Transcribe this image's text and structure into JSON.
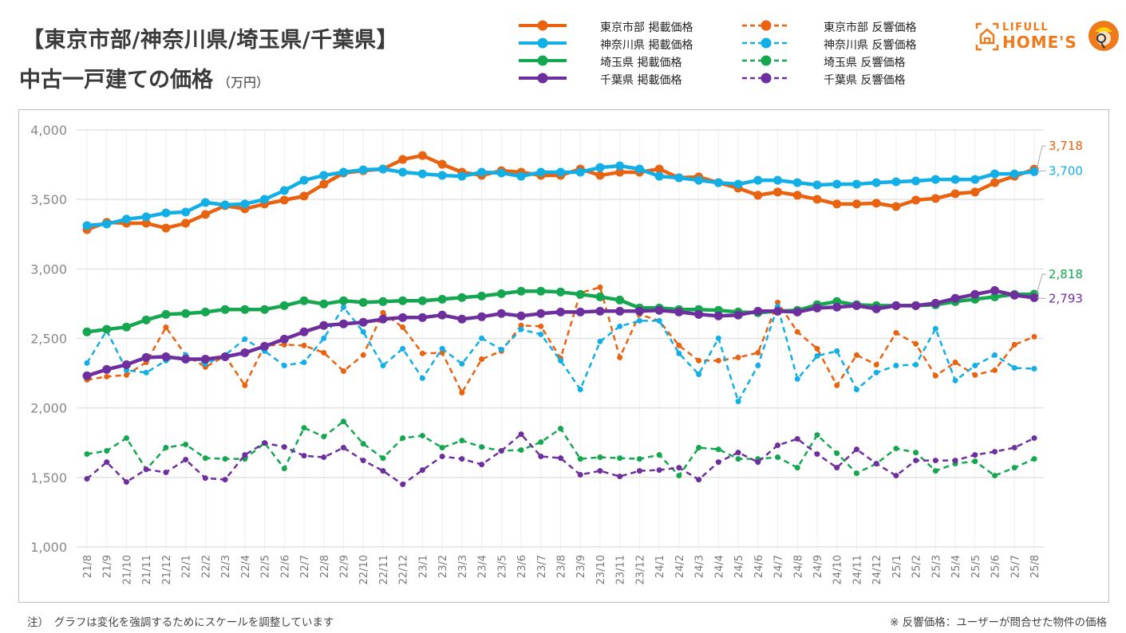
{
  "header": {
    "title_line1": "【東京市部/神奈川県/埼玉県/千葉県】",
    "title_line2": "中古一戸建ての価格",
    "unit": "（万円）"
  },
  "logo": {
    "line1": "LIFULL",
    "line2": "HOME'S",
    "color": "#ee7a1c"
  },
  "legend": [
    {
      "label": "東京市部 掲載価格",
      "color": "#e8620f",
      "style": "solid"
    },
    {
      "label": "神奈川県 掲載価格",
      "color": "#12aee6",
      "style": "solid"
    },
    {
      "label": "埼玉県 掲載価格",
      "color": "#15a650",
      "style": "solid"
    },
    {
      "label": "千葉県 掲載価格",
      "color": "#6e2f9e",
      "style": "solid"
    },
    {
      "label": "東京市部 反響価格",
      "color": "#e8620f",
      "style": "dashed"
    },
    {
      "label": "神奈川県 反響価格",
      "color": "#12aee6",
      "style": "dashed"
    },
    {
      "label": "埼玉県 反響価格",
      "color": "#15a650",
      "style": "dashed"
    },
    {
      "label": "千葉県 反響価格",
      "color": "#6e2f9e",
      "style": "dashed"
    }
  ],
  "footnotes": {
    "left": "注）　グラフは変化を強調するためにスケールを調整しています",
    "right": "※ 反響価格：ユーザーが問合せた物件の価格"
  },
  "chart_data": {
    "type": "line",
    "title": "【東京市部/神奈川県/埼玉県/千葉県】中古一戸建ての価格（万円）",
    "xlabel": "",
    "ylabel": "万円",
    "ylim": [
      1000,
      4000
    ],
    "yticks": [
      1000,
      1500,
      2000,
      2500,
      3000,
      3500,
      4000
    ],
    "ytick_labels": [
      "1,000",
      "1,500",
      "2,000",
      "2,500",
      "3,000",
      "3,500",
      "4,000"
    ],
    "grid": true,
    "legend_position": "top",
    "categories": [
      "21/8",
      "21/9",
      "21/10",
      "21/11",
      "21/12",
      "22/1",
      "22/2",
      "22/3",
      "22/4",
      "22/5",
      "22/6",
      "22/7",
      "22/8",
      "22/9",
      "22/10",
      "22/11",
      "22/12",
      "23/1",
      "23/2",
      "23/3",
      "23/4",
      "23/5",
      "23/6",
      "23/7",
      "23/8",
      "23/9",
      "23/10",
      "23/11",
      "23/12",
      "24/1",
      "24/2",
      "24/3",
      "24/4",
      "24/5",
      "24/6",
      "24/7",
      "24/8",
      "24/9",
      "24/10",
      "24/11",
      "24/12",
      "25/1",
      "25/2",
      "25/3",
      "25/4",
      "25/5",
      "25/6",
      "25/7",
      "25/8"
    ],
    "series": [
      {
        "name": "東京市部 掲載価格",
        "color": "#e8620f",
        "style": "solid",
        "values": [
          3283,
          3335,
          3329,
          3329,
          3294,
          3329,
          3392,
          3455,
          3432,
          3467,
          3495,
          3524,
          3610,
          3690,
          3707,
          3719,
          3788,
          3816,
          3753,
          3696,
          3673,
          3707,
          3696,
          3673,
          3673,
          3719,
          3673,
          3696,
          3696,
          3719,
          3656,
          3662,
          3621,
          3581,
          3530,
          3553,
          3530,
          3501,
          3467,
          3467,
          3473,
          3449,
          3495,
          3507,
          3541,
          3553,
          3621,
          3667,
          3718
        ],
        "end_label": "3,718"
      },
      {
        "name": "神奈川県 掲載価格",
        "color": "#12aee6",
        "style": "solid",
        "values": [
          3312,
          3323,
          3358,
          3375,
          3403,
          3409,
          3478,
          3461,
          3467,
          3501,
          3564,
          3638,
          3673,
          3696,
          3713,
          3719,
          3696,
          3684,
          3673,
          3667,
          3696,
          3690,
          3667,
          3696,
          3696,
          3696,
          3730,
          3742,
          3719,
          3667,
          3656,
          3638,
          3621,
          3610,
          3638,
          3638,
          3621,
          3604,
          3610,
          3610,
          3621,
          3627,
          3633,
          3644,
          3644,
          3644,
          3684,
          3684,
          3700
        ],
        "end_label": "3,700"
      },
      {
        "name": "埼玉県 掲載価格",
        "color": "#15a650",
        "style": "solid",
        "values": [
          2547,
          2565,
          2582,
          2633,
          2673,
          2679,
          2690,
          2708,
          2708,
          2708,
          2736,
          2771,
          2748,
          2771,
          2759,
          2765,
          2771,
          2771,
          2782,
          2794,
          2805,
          2822,
          2840,
          2840,
          2834,
          2817,
          2799,
          2776,
          2719,
          2719,
          2708,
          2708,
          2702,
          2690,
          2685,
          2696,
          2702,
          2742,
          2765,
          2742,
          2736,
          2736,
          2736,
          2742,
          2765,
          2782,
          2799,
          2817,
          2818
        ],
        "end_label": "2,818"
      },
      {
        "name": "千葉県 掲載価格",
        "color": "#6e2f9e",
        "style": "solid",
        "values": [
          2231,
          2277,
          2311,
          2363,
          2368,
          2351,
          2351,
          2368,
          2397,
          2443,
          2495,
          2547,
          2593,
          2605,
          2616,
          2639,
          2650,
          2650,
          2668,
          2639,
          2656,
          2679,
          2662,
          2679,
          2690,
          2690,
          2696,
          2696,
          2696,
          2702,
          2690,
          2673,
          2662,
          2668,
          2696,
          2696,
          2690,
          2719,
          2725,
          2736,
          2713,
          2736,
          2736,
          2753,
          2788,
          2817,
          2845,
          2811,
          2793
        ],
        "end_label": "2,793"
      },
      {
        "name": "東京市部 反響価格",
        "color": "#e8620f",
        "style": "dashed",
        "values": [
          2202,
          2225,
          2237,
          2328,
          2580,
          2380,
          2294,
          2374,
          2162,
          2449,
          2455,
          2449,
          2397,
          2265,
          2380,
          2685,
          2580,
          2392,
          2397,
          2110,
          2351,
          2409,
          2593,
          2587,
          2357,
          2828,
          2868,
          2363,
          2673,
          2627,
          2449,
          2340,
          2340,
          2363,
          2397,
          2759,
          2547,
          2426,
          2162,
          2380,
          2311,
          2540,
          2461,
          2231,
          2328,
          2237,
          2271,
          2455,
          2512
        ]
      },
      {
        "name": "神奈川県 反響価格",
        "color": "#12aee6",
        "style": "dashed",
        "values": [
          2323,
          2557,
          2271,
          2254,
          2340,
          2380,
          2317,
          2380,
          2495,
          2409,
          2305,
          2328,
          2501,
          2725,
          2547,
          2305,
          2426,
          2214,
          2426,
          2317,
          2501,
          2420,
          2565,
          2529,
          2340,
          2133,
          2478,
          2587,
          2627,
          2627,
          2392,
          2242,
          2501,
          2047,
          2305,
          2730,
          2208,
          2374,
          2409,
          2133,
          2254,
          2305,
          2311,
          2570,
          2197,
          2305,
          2380,
          2288,
          2282
        ]
      },
      {
        "name": "埼玉県 反響価格",
        "color": "#15a650",
        "style": "dashed",
        "values": [
          1668,
          1691,
          1783,
          1558,
          1714,
          1737,
          1639,
          1633,
          1633,
          1748,
          1564,
          1857,
          1794,
          1903,
          1742,
          1639,
          1783,
          1800,
          1714,
          1765,
          1719,
          1691,
          1697,
          1754,
          1851,
          1633,
          1645,
          1639,
          1633,
          1662,
          1513,
          1714,
          1702,
          1633,
          1633,
          1645,
          1570,
          1805,
          1674,
          1530,
          1599,
          1708,
          1679,
          1547,
          1599,
          1616,
          1513,
          1570,
          1633
        ]
      },
      {
        "name": "千葉県 反響価格",
        "color": "#6e2f9e",
        "style": "dashed",
        "values": [
          1490,
          1610,
          1467,
          1558,
          1536,
          1628,
          1495,
          1484,
          1662,
          1748,
          1719,
          1656,
          1645,
          1714,
          1622,
          1547,
          1450,
          1553,
          1651,
          1633,
          1593,
          1691,
          1811,
          1651,
          1639,
          1519,
          1547,
          1507,
          1547,
          1553,
          1570,
          1484,
          1610,
          1679,
          1610,
          1731,
          1777,
          1668,
          1570,
          1702,
          1599,
          1513,
          1622,
          1622,
          1622,
          1662,
          1685,
          1714,
          1783
        ]
      }
    ]
  }
}
